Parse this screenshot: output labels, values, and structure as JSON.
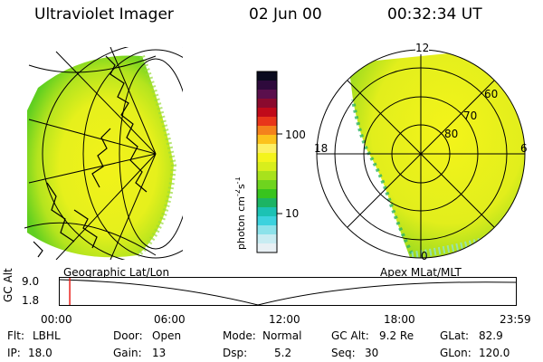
{
  "header": {
    "instrument": "Ultraviolet Imager",
    "date": "02 Jun 00",
    "time": "00:32:34 UT"
  },
  "colorbar": {
    "label": "photon cm",
    "label_sup1": "-2",
    "label_mid": "s",
    "label_sup2": "-1",
    "tick_top": "100",
    "tick_bottom": "10",
    "colors_top_to_bottom": [
      "#0a0a1e",
      "#2e0a3c",
      "#5a0f4c",
      "#8a0a2e",
      "#c00a1a",
      "#e8361a",
      "#f4821c",
      "#fcc21c",
      "#fdf064",
      "#f4f41c",
      "#d8ee1c",
      "#a8e21c",
      "#6ed41e",
      "#38c41e",
      "#1cb464",
      "#1cc2b4",
      "#3cd2de",
      "#8ce2ea",
      "#c8ecf2",
      "#e8f0f4"
    ]
  },
  "geo_panel": {
    "caption": "Geographic Lat/Lon"
  },
  "polar_panel": {
    "caption": "Apex MLat/MLT",
    "mlt_labels": {
      "top": "12",
      "left": "18",
      "right": "6",
      "bottom": "0"
    },
    "lat_labels": [
      "60",
      "70",
      "80"
    ]
  },
  "timeline": {
    "axis_label": "GC Alt",
    "y_ticks": [
      "9.0",
      "1.8"
    ],
    "x_ticks": [
      "00:00",
      "06:00",
      "12:00",
      "18:00",
      "23:59"
    ],
    "marker_fraction_of_day": 0.022,
    "marker_color": "#e8201c"
  },
  "info": {
    "flt_label": "Flt:",
    "flt_value": "LBHL",
    "ip_label": "IP:",
    "ip_value": "18.0",
    "door_label": "Door:",
    "door_value": "Open",
    "gain_label": "Gain:",
    "gain_value": "13",
    "mode_label": "Mode:",
    "mode_value": "Normal",
    "dsp_label": "Dsp:",
    "dsp_value": "5.2",
    "gcalt_label": "GC Alt:",
    "gcalt_value": "9.2 Re",
    "seq_label": "Seq:",
    "seq_value": "30",
    "glat_label": "GLat:",
    "glat_value": "82.9",
    "glon_label": "GLon:",
    "glon_value": "120.0"
  }
}
